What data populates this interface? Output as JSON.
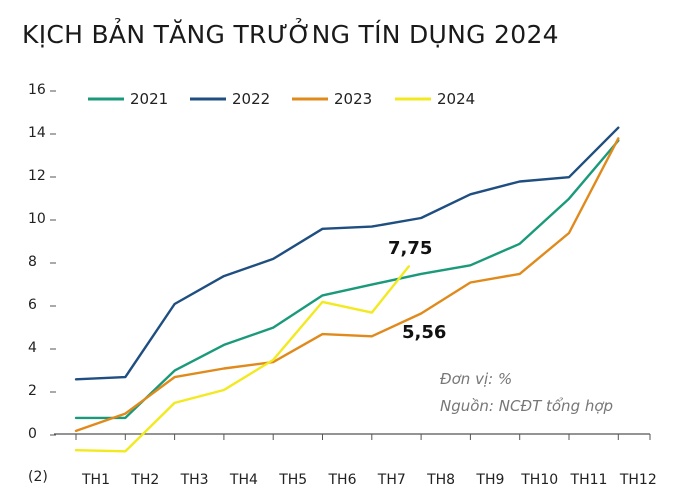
{
  "title": "KỊCH BẢN TĂNG TRƯỞNG TÍN DỤNG 2024",
  "chart_data": {
    "type": "line",
    "categories": [
      "TH1",
      "TH2",
      "TH3",
      "TH4",
      "TH5",
      "TH6",
      "TH7",
      "TH8",
      "TH9",
      "TH10",
      "TH11",
      "TH12"
    ],
    "y_ticks": [
      "(2)",
      "0",
      "2",
      "4",
      "6",
      "8",
      "10",
      "12",
      "14",
      "16"
    ],
    "ylim": [
      -2,
      16
    ],
    "series": [
      {
        "name": "2021",
        "color": "#1a9a7a",
        "x": [
          1,
          2,
          3,
          4,
          5,
          6,
          7,
          8,
          9,
          10,
          11,
          12
        ],
        "values": [
          0.7,
          0.7,
          2.9,
          4.1,
          4.9,
          6.4,
          6.9,
          7.4,
          7.8,
          8.8,
          10.9,
          13.6
        ]
      },
      {
        "name": "2022",
        "color": "#1f4e80",
        "x": [
          1,
          2,
          3,
          4,
          5,
          6,
          7,
          8,
          9,
          10,
          11,
          12
        ],
        "values": [
          2.5,
          2.6,
          6.0,
          7.3,
          8.1,
          9.5,
          9.6,
          10.0,
          11.1,
          11.7,
          11.9,
          14.2
        ]
      },
      {
        "name": "2023",
        "color": "#e08a1c",
        "x": [
          1,
          2,
          3,
          4,
          5,
          6,
          7,
          8,
          9,
          10,
          11,
          12
        ],
        "values": [
          0.1,
          0.9,
          2.6,
          3.0,
          3.3,
          4.6,
          4.5,
          5.56,
          7.0,
          7.4,
          9.3,
          13.7
        ]
      },
      {
        "name": "2024",
        "color": "#f2ea1f",
        "x": [
          1,
          2,
          3,
          4,
          5,
          6,
          7,
          7.75
        ],
        "values": [
          -0.8,
          -0.85,
          1.4,
          2.0,
          3.4,
          6.1,
          5.6,
          7.75
        ]
      }
    ],
    "annotations": [
      {
        "text": "7,75",
        "x": 7.75,
        "y": 7.75
      },
      {
        "text": "5,56",
        "x": 8,
        "y": 5.56
      }
    ],
    "legend_position": "top"
  },
  "source": {
    "unit": "Đơn vị: %",
    "source": "Nguồn: NCĐT tổng hợp"
  }
}
